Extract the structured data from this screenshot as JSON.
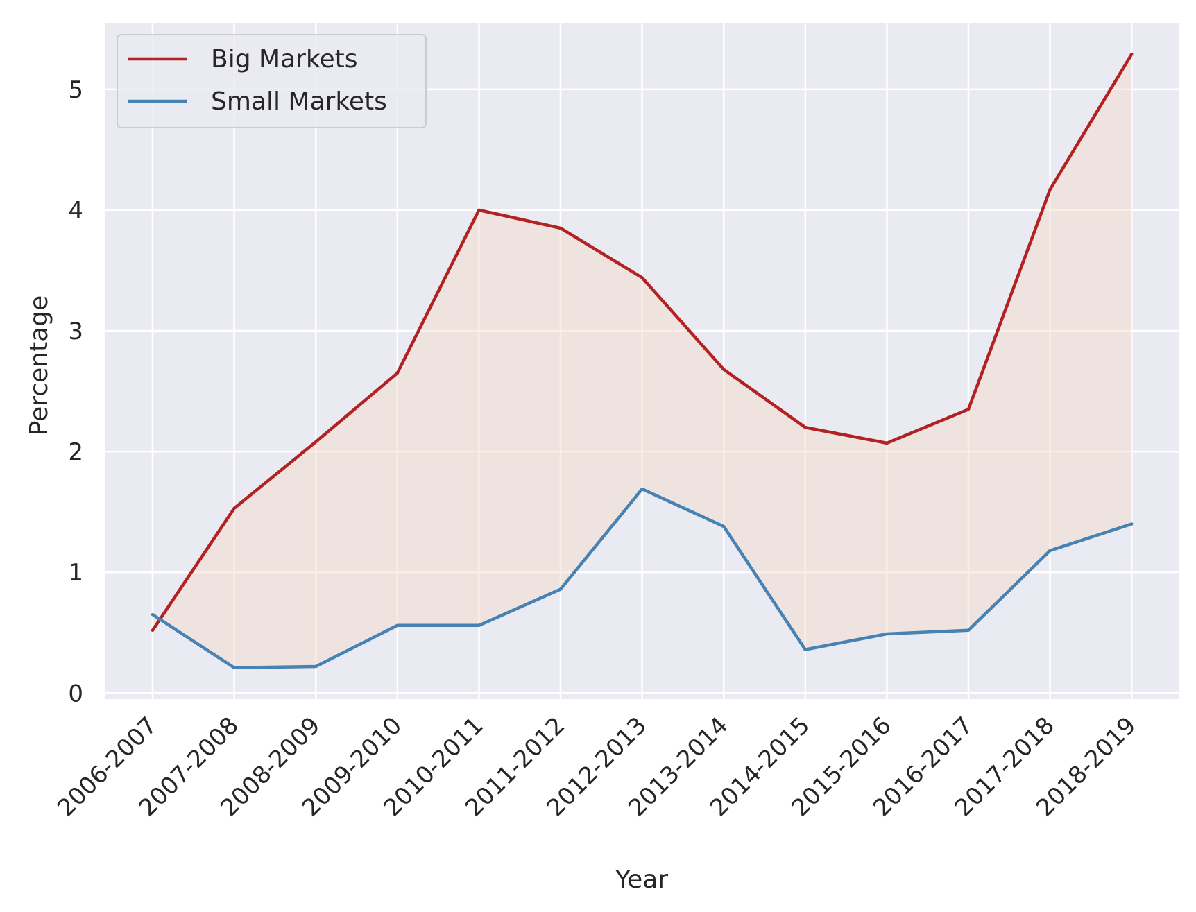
{
  "chart_data": {
    "type": "line",
    "title": "",
    "xlabel": "Year",
    "ylabel": "Percentage",
    "categories": [
      "2006-2007",
      "2007-2008",
      "2008-2009",
      "2009-2010",
      "2010-2011",
      "2011-2012",
      "2012-2013",
      "2013-2014",
      "2014-2015",
      "2015-2016",
      "2016-2017",
      "2017-2018",
      "2018-2019"
    ],
    "ylim": [
      -0.05,
      5.55
    ],
    "yticks": [
      0,
      1,
      2,
      3,
      4,
      5
    ],
    "grid": true,
    "legend_position": "top-left",
    "fill_between": true,
    "series": [
      {
        "name": "Big Markets",
        "color": "#b22222",
        "values": [
          0.52,
          1.53,
          2.08,
          2.65,
          4.0,
          3.85,
          3.44,
          2.68,
          2.2,
          2.07,
          2.35,
          4.17,
          5.29
        ]
      },
      {
        "name": "Small Markets",
        "color": "#4682b4",
        "values": [
          0.65,
          0.21,
          0.22,
          0.56,
          0.56,
          0.86,
          1.69,
          1.38,
          0.36,
          0.49,
          0.52,
          1.18,
          1.4
        ]
      }
    ],
    "fill_color": "#f5dcc8"
  }
}
